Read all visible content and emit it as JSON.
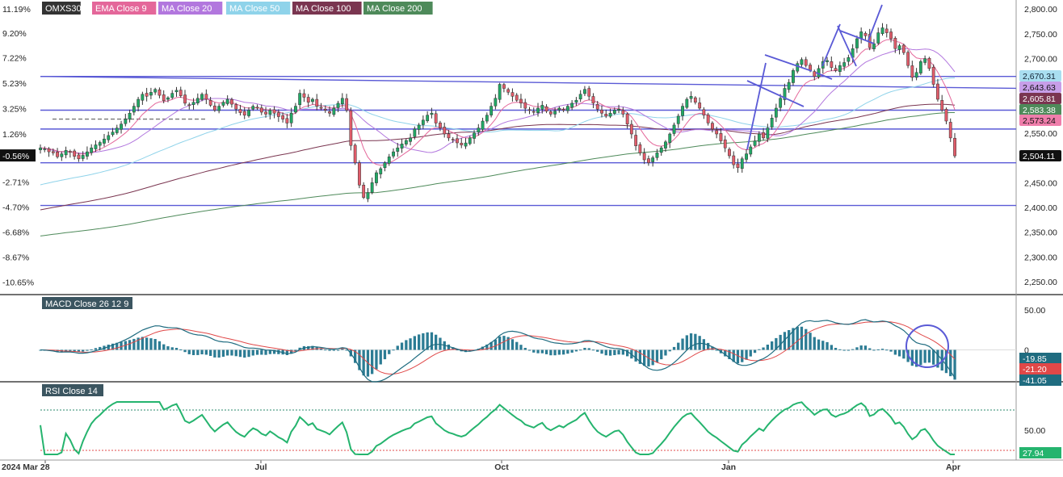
{
  "chart_data": [
    {
      "type": "candlestick",
      "panel": "price",
      "legend": [
        {
          "label": "OMXS30",
          "color": "#333333"
        },
        {
          "label": "EMA Close 9",
          "color": "#e4679a"
        },
        {
          "label": "MA Close 20",
          "color": "#b277de"
        },
        {
          "label": "MA Close 50",
          "color": "#8fd3ea"
        },
        {
          "label": "MA Close 100",
          "color": "#7a3550"
        },
        {
          "label": "MA Close 200",
          "color": "#4e8a5a"
        }
      ],
      "y_ticks_right": [
        "2,800.00",
        "2,750.00",
        "2,700.00",
        "2,650.00",
        "2,600.00",
        "2,550.00",
        "2,450.00",
        "2,400.00",
        "2,350.00",
        "2,300.00",
        "2,250.00"
      ],
      "y_ticks_left": [
        "11.19%",
        "9.20%",
        "7.22%",
        "5.23%",
        "3.25%",
        "1.26%",
        "-0.56%",
        "-2.71%",
        "-4.70%",
        "-6.68%",
        "-8.67%",
        "-10.65%"
      ],
      "ylim": [
        2238,
        2813
      ],
      "x_labels": [
        "2024 Mar 28",
        "Jul",
        "Oct",
        "Jan",
        "Apr"
      ],
      "series": [
        {
          "name": "OMXS30",
          "last": 2504.11,
          "label": "2,504.11",
          "color": "#111111",
          "closes": [
            2520,
            2518,
            2512,
            2510,
            2502,
            2508,
            2515,
            2511,
            2503,
            2498,
            2505,
            2512,
            2520,
            2526,
            2531,
            2538,
            2545,
            2552,
            2560,
            2568,
            2578,
            2590,
            2604,
            2618,
            2628,
            2624,
            2632,
            2638,
            2626,
            2615,
            2621,
            2630,
            2636,
            2625,
            2610,
            2606,
            2612,
            2620,
            2628,
            2618,
            2606,
            2596,
            2604,
            2612,
            2618,
            2608,
            2598,
            2591,
            2586,
            2596,
            2604,
            2600,
            2592,
            2588,
            2596,
            2590,
            2583,
            2578,
            2570,
            2590,
            2604,
            2630,
            2622,
            2612,
            2618,
            2604,
            2600,
            2596,
            2590,
            2600,
            2610,
            2620,
            2596,
            2525,
            2490,
            2445,
            2420,
            2430,
            2450,
            2470,
            2478,
            2490,
            2502,
            2512,
            2520,
            2528,
            2535,
            2540,
            2558,
            2566,
            2576,
            2586,
            2590,
            2570,
            2560,
            2548,
            2540,
            2536,
            2530,
            2526,
            2530,
            2540,
            2550,
            2560,
            2574,
            2586,
            2604,
            2620,
            2648,
            2640,
            2632,
            2624,
            2616,
            2610,
            2600,
            2596,
            2592,
            2600,
            2606,
            2594,
            2588,
            2594,
            2600,
            2596,
            2604,
            2610,
            2616,
            2628,
            2638,
            2624,
            2610,
            2598,
            2590,
            2584,
            2590,
            2596,
            2598,
            2588,
            2568,
            2548,
            2524,
            2510,
            2496,
            2490,
            2500,
            2510,
            2520,
            2532,
            2548,
            2566,
            2584,
            2604,
            2618,
            2624,
            2612,
            2600,
            2586,
            2570,
            2558,
            2548,
            2534,
            2520,
            2504,
            2486,
            2480,
            2498,
            2508,
            2522,
            2534,
            2548,
            2540,
            2560,
            2580,
            2600,
            2620,
            2640,
            2652,
            2676,
            2690,
            2698,
            2686,
            2676,
            2664,
            2680,
            2694,
            2696,
            2682,
            2676,
            2686,
            2692,
            2702,
            2720,
            2740,
            2754,
            2746,
            2722,
            2730,
            2752,
            2762,
            2752,
            2740,
            2720,
            2726,
            2712,
            2686,
            2662,
            2672,
            2694,
            2700,
            2680,
            2648,
            2618,
            2596,
            2574,
            2540,
            2504
          ]
        },
        {
          "name": "EMA Close 9",
          "label": "2,573.24",
          "color": "#e4679a"
        },
        {
          "name": "MA Close 20",
          "label": "2,643.63",
          "color": "#b277de"
        },
        {
          "name": "MA Close 50",
          "label": "2,670.31",
          "color": "#8fd3ea"
        },
        {
          "name": "MA Close 100",
          "label": "2,605.81",
          "color": "#7a3550"
        },
        {
          "name": "MA Close 200",
          "label": "2,583.38",
          "color": "#4e8a5a"
        }
      ],
      "hlines": [
        2664,
        2596,
        2558,
        2490,
        2404
      ]
    },
    {
      "type": "macd",
      "panel": "macd",
      "title": "MACD Close 26 12 9",
      "y_ticks": [
        "50.00",
        "0"
      ],
      "ylim": [
        -45,
        58
      ],
      "values": [
        {
          "label": "-19.85",
          "color": "#1f6c80"
        },
        {
          "label": "-21.20",
          "color": "#e04848"
        },
        {
          "label": "-41.05",
          "color": "#1f6c80"
        }
      ]
    },
    {
      "type": "line",
      "panel": "rsi",
      "title": "RSI Close 14",
      "y_ticks": [
        "50.00"
      ],
      "ylim": [
        25,
        82
      ],
      "levels": [
        70,
        30
      ],
      "last": "27.94",
      "color": "#25b46e"
    }
  ]
}
